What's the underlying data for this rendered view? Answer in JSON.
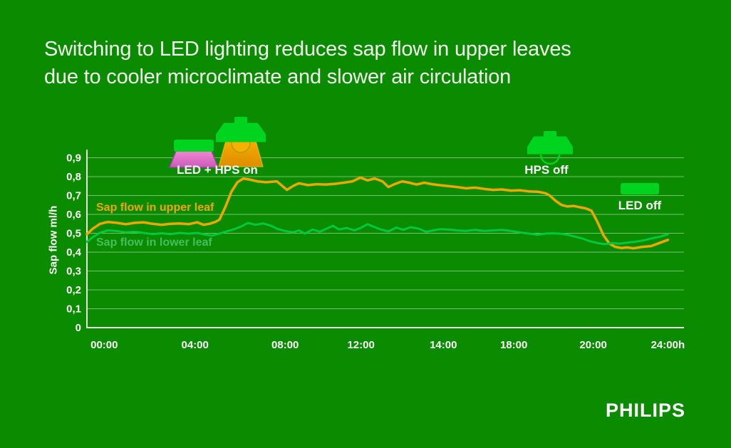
{
  "title": {
    "line1": "Switching to LED lighting reduces sap flow in upper leaves",
    "line2": "due to cooler microclimate and slower air circulation"
  },
  "branding": {
    "logo": "PHILIPS"
  },
  "annotations": {
    "led_hps_on": "LED + HPS on",
    "hps_off": "HPS off",
    "led_off": "LED off"
  },
  "colors": {
    "background": "#0A8B00",
    "title_text": "#F2F8EF",
    "axis": "#EDF3EA",
    "gridline": "rgba(255,255,255,0.45)",
    "upper_leaf_line": "#EFA700",
    "lower_leaf_line": "#00C93E",
    "lower_leaf_label": "#45BE5C",
    "icon_green": "#00D41F",
    "beam_pink_top": "#F285D2",
    "beam_pink_bottom": "#C95CB8",
    "beam_pink_edge": "#A23F9E",
    "beam_orange_top": "#F8AC00",
    "beam_orange_bottom": "#DD8D00"
  },
  "chart_data": {
    "type": "line",
    "title": "",
    "xlabel": "",
    "ylabel": "Sap flow ml/h",
    "ylim": [
      0,
      0.9
    ],
    "grid": true,
    "legend_position": "inline-labels",
    "y_ticks": [
      {
        "label": "0",
        "value": 0.0
      },
      {
        "label": "0,1",
        "value": 0.1
      },
      {
        "label": "0,2",
        "value": 0.2
      },
      {
        "label": "0,3",
        "value": 0.3
      },
      {
        "label": "0,4",
        "value": 0.4
      },
      {
        "label": "0,5",
        "value": 0.5
      },
      {
        "label": "0,6",
        "value": 0.6
      },
      {
        "label": "0,7",
        "value": 0.7
      },
      {
        "label": "0,8",
        "value": 0.8
      },
      {
        "label": "0,9",
        "value": 0.9
      }
    ],
    "x_ticks": [
      {
        "label": "00:00",
        "pos": 0.029
      },
      {
        "label": "04:00",
        "pos": 0.181
      },
      {
        "label": "08:00",
        "pos": 0.332
      },
      {
        "label": "12:00",
        "pos": 0.459
      },
      {
        "label": "14:00",
        "pos": 0.597
      },
      {
        "label": "18:00",
        "pos": 0.715
      },
      {
        "label": "20:00",
        "pos": 0.848
      },
      {
        "label": "24:00h",
        "pos": 0.973
      }
    ],
    "series": [
      {
        "name": "Sap flow in upper leaf",
        "color": "#EFA700",
        "width": 3.5,
        "points": [
          [
            0.0,
            0.495
          ],
          [
            0.01,
            0.525
          ],
          [
            0.022,
            0.55
          ],
          [
            0.035,
            0.56
          ],
          [
            0.05,
            0.555
          ],
          [
            0.065,
            0.548
          ],
          [
            0.08,
            0.555
          ],
          [
            0.095,
            0.558
          ],
          [
            0.11,
            0.55
          ],
          [
            0.125,
            0.545
          ],
          [
            0.14,
            0.55
          ],
          [
            0.155,
            0.552
          ],
          [
            0.17,
            0.548
          ],
          [
            0.185,
            0.558
          ],
          [
            0.195,
            0.545
          ],
          [
            0.205,
            0.55
          ],
          [
            0.215,
            0.56
          ],
          [
            0.222,
            0.572
          ],
          [
            0.232,
            0.64
          ],
          [
            0.242,
            0.72
          ],
          [
            0.252,
            0.77
          ],
          [
            0.262,
            0.79
          ],
          [
            0.272,
            0.785
          ],
          [
            0.285,
            0.775
          ],
          [
            0.3,
            0.77
          ],
          [
            0.318,
            0.775
          ],
          [
            0.335,
            0.73
          ],
          [
            0.345,
            0.75
          ],
          [
            0.355,
            0.765
          ],
          [
            0.37,
            0.755
          ],
          [
            0.385,
            0.76
          ],
          [
            0.4,
            0.758
          ],
          [
            0.415,
            0.762
          ],
          [
            0.43,
            0.768
          ],
          [
            0.445,
            0.775
          ],
          [
            0.458,
            0.795
          ],
          [
            0.47,
            0.78
          ],
          [
            0.482,
            0.79
          ],
          [
            0.495,
            0.775
          ],
          [
            0.505,
            0.745
          ],
          [
            0.515,
            0.76
          ],
          [
            0.528,
            0.775
          ],
          [
            0.54,
            0.768
          ],
          [
            0.552,
            0.758
          ],
          [
            0.565,
            0.768
          ],
          [
            0.578,
            0.76
          ],
          [
            0.59,
            0.755
          ],
          [
            0.605,
            0.75
          ],
          [
            0.62,
            0.745
          ],
          [
            0.635,
            0.738
          ],
          [
            0.65,
            0.742
          ],
          [
            0.665,
            0.735
          ],
          [
            0.68,
            0.73
          ],
          [
            0.695,
            0.732
          ],
          [
            0.71,
            0.726
          ],
          [
            0.725,
            0.728
          ],
          [
            0.74,
            0.722
          ],
          [
            0.755,
            0.72
          ],
          [
            0.768,
            0.712
          ],
          [
            0.775,
            0.7
          ],
          [
            0.785,
            0.672
          ],
          [
            0.795,
            0.65
          ],
          [
            0.805,
            0.642
          ],
          [
            0.815,
            0.645
          ],
          [
            0.825,
            0.638
          ],
          [
            0.835,
            0.632
          ],
          [
            0.845,
            0.62
          ],
          [
            0.855,
            0.56
          ],
          [
            0.865,
            0.49
          ],
          [
            0.875,
            0.445
          ],
          [
            0.885,
            0.428
          ],
          [
            0.895,
            0.422
          ],
          [
            0.905,
            0.425
          ],
          [
            0.915,
            0.42
          ],
          [
            0.93,
            0.428
          ],
          [
            0.945,
            0.432
          ],
          [
            0.96,
            0.45
          ],
          [
            0.973,
            0.465
          ]
        ]
      },
      {
        "name": "Sap flow in lower leaf",
        "color": "#00C93E",
        "width": 3,
        "points": [
          [
            0.0,
            0.455
          ],
          [
            0.01,
            0.48
          ],
          [
            0.022,
            0.503
          ],
          [
            0.035,
            0.515
          ],
          [
            0.05,
            0.512
          ],
          [
            0.065,
            0.505
          ],
          [
            0.08,
            0.508
          ],
          [
            0.095,
            0.502
          ],
          [
            0.11,
            0.495
          ],
          [
            0.125,
            0.5
          ],
          [
            0.14,
            0.495
          ],
          [
            0.155,
            0.502
          ],
          [
            0.17,
            0.498
          ],
          [
            0.185,
            0.502
          ],
          [
            0.2,
            0.492
          ],
          [
            0.21,
            0.488
          ],
          [
            0.222,
            0.498
          ],
          [
            0.232,
            0.508
          ],
          [
            0.245,
            0.52
          ],
          [
            0.258,
            0.535
          ],
          [
            0.27,
            0.555
          ],
          [
            0.282,
            0.545
          ],
          [
            0.295,
            0.552
          ],
          [
            0.308,
            0.54
          ],
          [
            0.32,
            0.522
          ],
          [
            0.332,
            0.512
          ],
          [
            0.345,
            0.505
          ],
          [
            0.355,
            0.515
          ],
          [
            0.365,
            0.498
          ],
          [
            0.378,
            0.52
          ],
          [
            0.39,
            0.508
          ],
          [
            0.402,
            0.525
          ],
          [
            0.412,
            0.54
          ],
          [
            0.422,
            0.52
          ],
          [
            0.435,
            0.528
          ],
          [
            0.448,
            0.515
          ],
          [
            0.458,
            0.528
          ],
          [
            0.47,
            0.548
          ],
          [
            0.48,
            0.535
          ],
          [
            0.492,
            0.52
          ],
          [
            0.505,
            0.51
          ],
          [
            0.518,
            0.53
          ],
          [
            0.53,
            0.518
          ],
          [
            0.542,
            0.532
          ],
          [
            0.555,
            0.525
          ],
          [
            0.568,
            0.508
          ],
          [
            0.58,
            0.515
          ],
          [
            0.592,
            0.522
          ],
          [
            0.605,
            0.52
          ],
          [
            0.62,
            0.515
          ],
          [
            0.635,
            0.512
          ],
          [
            0.65,
            0.518
          ],
          [
            0.665,
            0.512
          ],
          [
            0.68,
            0.515
          ],
          [
            0.695,
            0.518
          ],
          [
            0.71,
            0.512
          ],
          [
            0.725,
            0.505
          ],
          [
            0.74,
            0.498
          ],
          [
            0.755,
            0.492
          ],
          [
            0.768,
            0.498
          ],
          [
            0.78,
            0.5
          ],
          [
            0.792,
            0.498
          ],
          [
            0.805,
            0.492
          ],
          [
            0.818,
            0.482
          ],
          [
            0.83,
            0.472
          ],
          [
            0.842,
            0.458
          ],
          [
            0.855,
            0.448
          ],
          [
            0.868,
            0.442
          ],
          [
            0.88,
            0.448
          ],
          [
            0.892,
            0.445
          ],
          [
            0.905,
            0.45
          ],
          [
            0.918,
            0.455
          ],
          [
            0.932,
            0.462
          ],
          [
            0.945,
            0.472
          ],
          [
            0.96,
            0.482
          ],
          [
            0.973,
            0.495
          ]
        ]
      }
    ]
  }
}
